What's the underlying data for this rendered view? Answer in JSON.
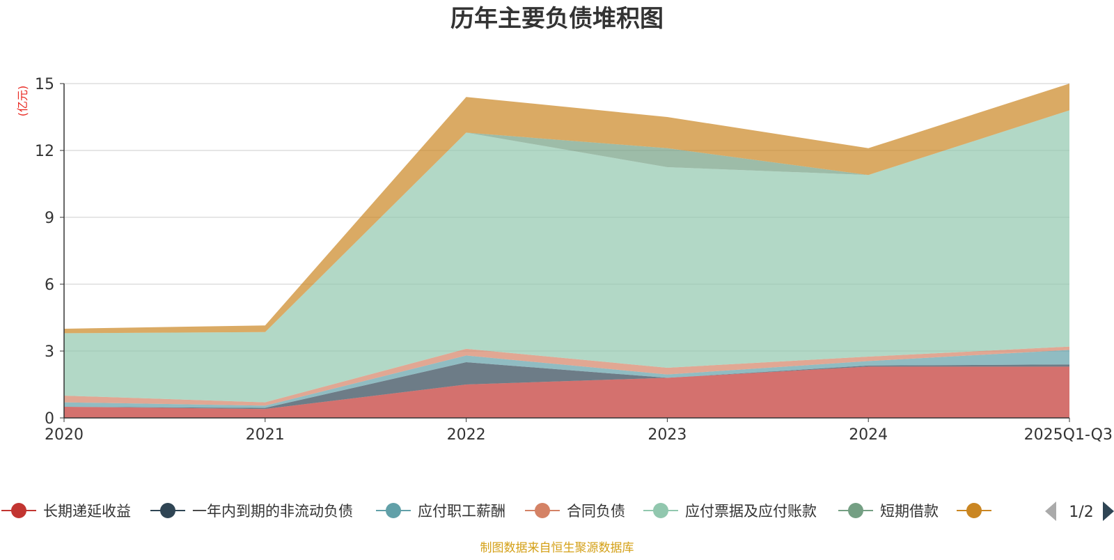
{
  "chart_data": {
    "type": "area",
    "title": "历年主要负债堆积图",
    "unit_label": "(亿元)",
    "categories": [
      "2020",
      "2021",
      "2022",
      "2023",
      "2024",
      "2025Q1-Q3"
    ],
    "ylim": [
      0,
      15
    ],
    "yticks": [
      0,
      3,
      6,
      9,
      12,
      15
    ],
    "grid": true,
    "stacked": true,
    "legend_position": "bottom",
    "legend_page": "1/2",
    "series": [
      {
        "name": "长期递延收益",
        "color": "#c23531",
        "values": [
          0.5,
          0.4,
          1.5,
          1.8,
          2.3,
          2.3
        ]
      },
      {
        "name": "一年内到期的非流动负债",
        "color": "#2f4554",
        "values": [
          0.0,
          0.05,
          1.0,
          0.0,
          0.05,
          0.1
        ]
      },
      {
        "name": "应付职工薪酬",
        "color": "#61a0a8",
        "values": [
          0.2,
          0.1,
          0.3,
          0.15,
          0.2,
          0.65
        ]
      },
      {
        "name": "合同负债",
        "color": "#d48265",
        "values": [
          0.3,
          0.15,
          0.3,
          0.3,
          0.2,
          0.15
        ]
      },
      {
        "name": "应付票据及应付账款",
        "color": "#91c7ae",
        "values": [
          2.8,
          3.15,
          9.7,
          9.0,
          8.15,
          10.6
        ]
      },
      {
        "name": "短期借款",
        "color": "#749f83",
        "values": [
          0.0,
          0.0,
          0.0,
          0.85,
          0.0,
          0.0
        ]
      },
      {
        "name": "",
        "color": "#ca8622",
        "values": [
          0.2,
          0.3,
          1.6,
          1.4,
          1.2,
          1.2
        ]
      }
    ],
    "source_note": "制图数据来自恒生聚源数据库"
  }
}
